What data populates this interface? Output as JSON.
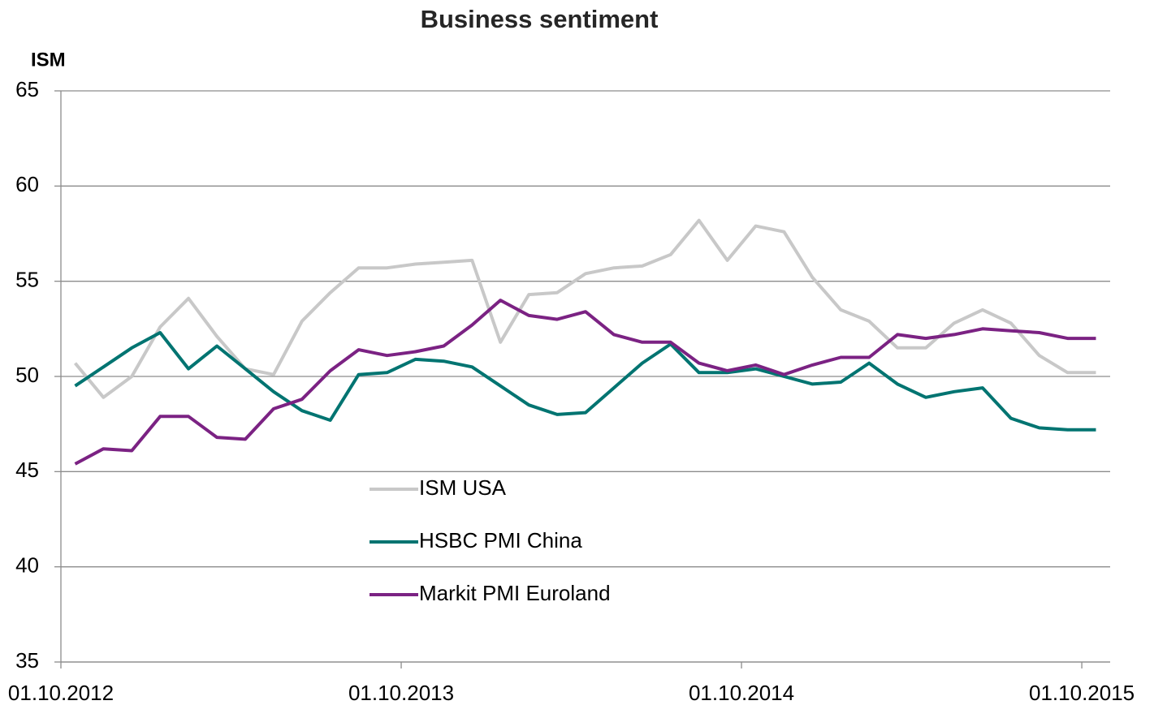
{
  "chart_data": {
    "type": "line",
    "title": "Business sentiment",
    "y_label": "ISM",
    "categories": [
      "01.10.2012",
      null,
      null,
      null,
      null,
      null,
      null,
      null,
      null,
      null,
      null,
      null,
      "01.10.2013",
      null,
      null,
      null,
      null,
      null,
      null,
      null,
      null,
      null,
      null,
      null,
      "01.10.2014",
      null,
      null,
      null,
      null,
      null,
      null,
      null,
      null,
      null,
      null,
      null,
      "01.10.2015"
    ],
    "series": [
      {
        "name": "ISM USA",
        "color": "#c8c8c8",
        "values": [
          50.7,
          48.9,
          50.0,
          52.6,
          54.1,
          52.1,
          50.4,
          50.1,
          52.9,
          54.4,
          55.7,
          55.7,
          55.9,
          56.0,
          56.1,
          51.8,
          54.3,
          54.4,
          55.4,
          55.7,
          55.8,
          56.4,
          58.2,
          56.1,
          57.9,
          57.6,
          55.2,
          53.5,
          52.9,
          51.5,
          51.5,
          52.8,
          53.5,
          52.8,
          51.1,
          50.2,
          50.2
        ]
      },
      {
        "name": "HSBC PMI China",
        "color": "#007471",
        "values": [
          49.5,
          50.5,
          51.5,
          52.3,
          50.4,
          51.6,
          50.4,
          49.2,
          48.2,
          47.7,
          50.1,
          50.2,
          50.9,
          50.8,
          50.5,
          49.5,
          48.5,
          48.0,
          48.1,
          49.4,
          50.7,
          51.7,
          50.2,
          50.2,
          50.4,
          50.0,
          49.6,
          49.7,
          50.7,
          49.6,
          48.9,
          49.2,
          49.4,
          47.8,
          47.3,
          47.2,
          47.2
        ]
      },
      {
        "name": "Markit PMI Euroland",
        "color": "#7b2283",
        "values": [
          45.4,
          46.2,
          46.1,
          47.9,
          47.9,
          46.8,
          46.7,
          48.3,
          48.8,
          50.3,
          51.4,
          51.1,
          51.3,
          51.6,
          52.7,
          54.0,
          53.2,
          53.0,
          53.4,
          52.2,
          51.8,
          51.8,
          50.7,
          50.3,
          50.6,
          50.1,
          50.6,
          51.0,
          51.0,
          52.2,
          52.0,
          52.2,
          52.5,
          52.4,
          52.3,
          52.0,
          52.0
        ]
      }
    ],
    "ylim": [
      35,
      65
    ],
    "yticks": [
      35,
      40,
      45,
      50,
      55,
      60,
      65
    ],
    "grid": true
  }
}
